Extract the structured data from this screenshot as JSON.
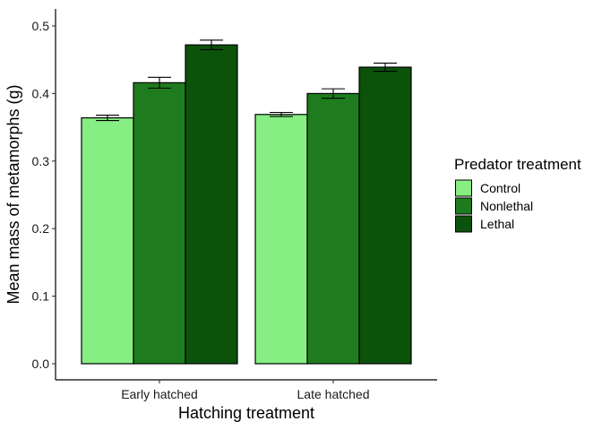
{
  "chart_data": {
    "type": "bar",
    "categories": [
      "Early hatched",
      "Late hatched"
    ],
    "series": [
      {
        "name": "Control",
        "color": "#86EE82",
        "values": [
          0.364,
          0.369
        ],
        "error": [
          0.004,
          0.003
        ]
      },
      {
        "name": "Nonlethal",
        "color": "#1E7C1E",
        "values": [
          0.416,
          0.4
        ],
        "error": [
          0.008,
          0.007
        ]
      },
      {
        "name": "Lethal",
        "color": "#0B520B",
        "values": [
          0.472,
          0.439
        ],
        "error": [
          0.007,
          0.006
        ]
      }
    ],
    "xlabel": "Hatching treatment",
    "ylabel": "Mean mass of metamorphs (g)",
    "ylim": [
      0,
      0.5
    ],
    "yticks": [
      "0.0",
      "0.1",
      "0.2",
      "0.3",
      "0.4",
      "0.5"
    ],
    "legend": {
      "title": "Predator treatment",
      "position": "right"
    },
    "grid": false
  }
}
